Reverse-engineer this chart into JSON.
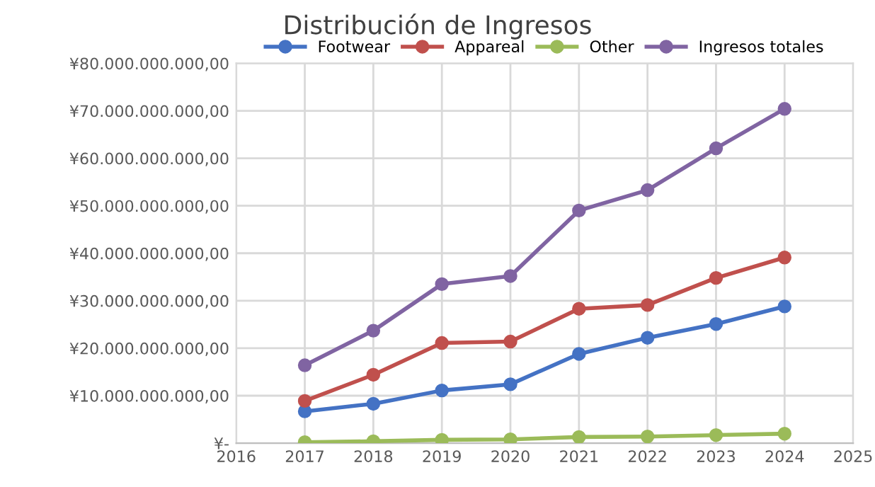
{
  "chart_data": {
    "type": "line",
    "title": "Distribución de Ingresos",
    "x": [
      2017,
      2018,
      2019,
      2020,
      2021,
      2022,
      2023,
      2024
    ],
    "series": [
      {
        "name": "Footwear",
        "color": "#4472c4",
        "values": [
          6700000000,
          8300000000,
          11100000000,
          12400000000,
          18800000000,
          22200000000,
          25100000000,
          28800000000
        ]
      },
      {
        "name": "Appareal",
        "color": "#c0504d",
        "values": [
          8900000000,
          14400000000,
          21100000000,
          21400000000,
          28300000000,
          29100000000,
          34800000000,
          39100000000
        ]
      },
      {
        "name": "Other",
        "color": "#9bbb59",
        "values": [
          200000000,
          400000000,
          700000000,
          800000000,
          1300000000,
          1400000000,
          1700000000,
          2000000000
        ]
      },
      {
        "name": "Ingresos totales",
        "color": "#8064a2",
        "values": [
          16400000000,
          23700000000,
          33500000000,
          35200000000,
          49000000000,
          53300000000,
          62100000000,
          70400000000
        ]
      }
    ],
    "xlim": [
      2016,
      2025
    ],
    "xticks": [
      2016,
      2017,
      2018,
      2019,
      2020,
      2021,
      2022,
      2023,
      2024,
      2025
    ],
    "ylim": [
      0,
      80000000000
    ],
    "yticks": [
      {
        "value": 0,
        "label": "¥-"
      },
      {
        "value": 10000000000,
        "label": "¥10.000.000.000,00"
      },
      {
        "value": 20000000000,
        "label": "¥20.000.000.000,00"
      },
      {
        "value": 30000000000,
        "label": "¥30.000.000.000,00"
      },
      {
        "value": 40000000000,
        "label": "¥40.000.000.000,00"
      },
      {
        "value": 50000000000,
        "label": "¥50.000.000.000,00"
      },
      {
        "value": 60000000000,
        "label": "¥60.000.000.000,00"
      },
      {
        "value": 70000000000,
        "label": "¥70.000.000.000,00"
      },
      {
        "value": 80000000000,
        "label": "¥80.000.000.000,00"
      }
    ],
    "grid": true,
    "legend": "top",
    "marker": "circle",
    "line_style": "solid"
  }
}
